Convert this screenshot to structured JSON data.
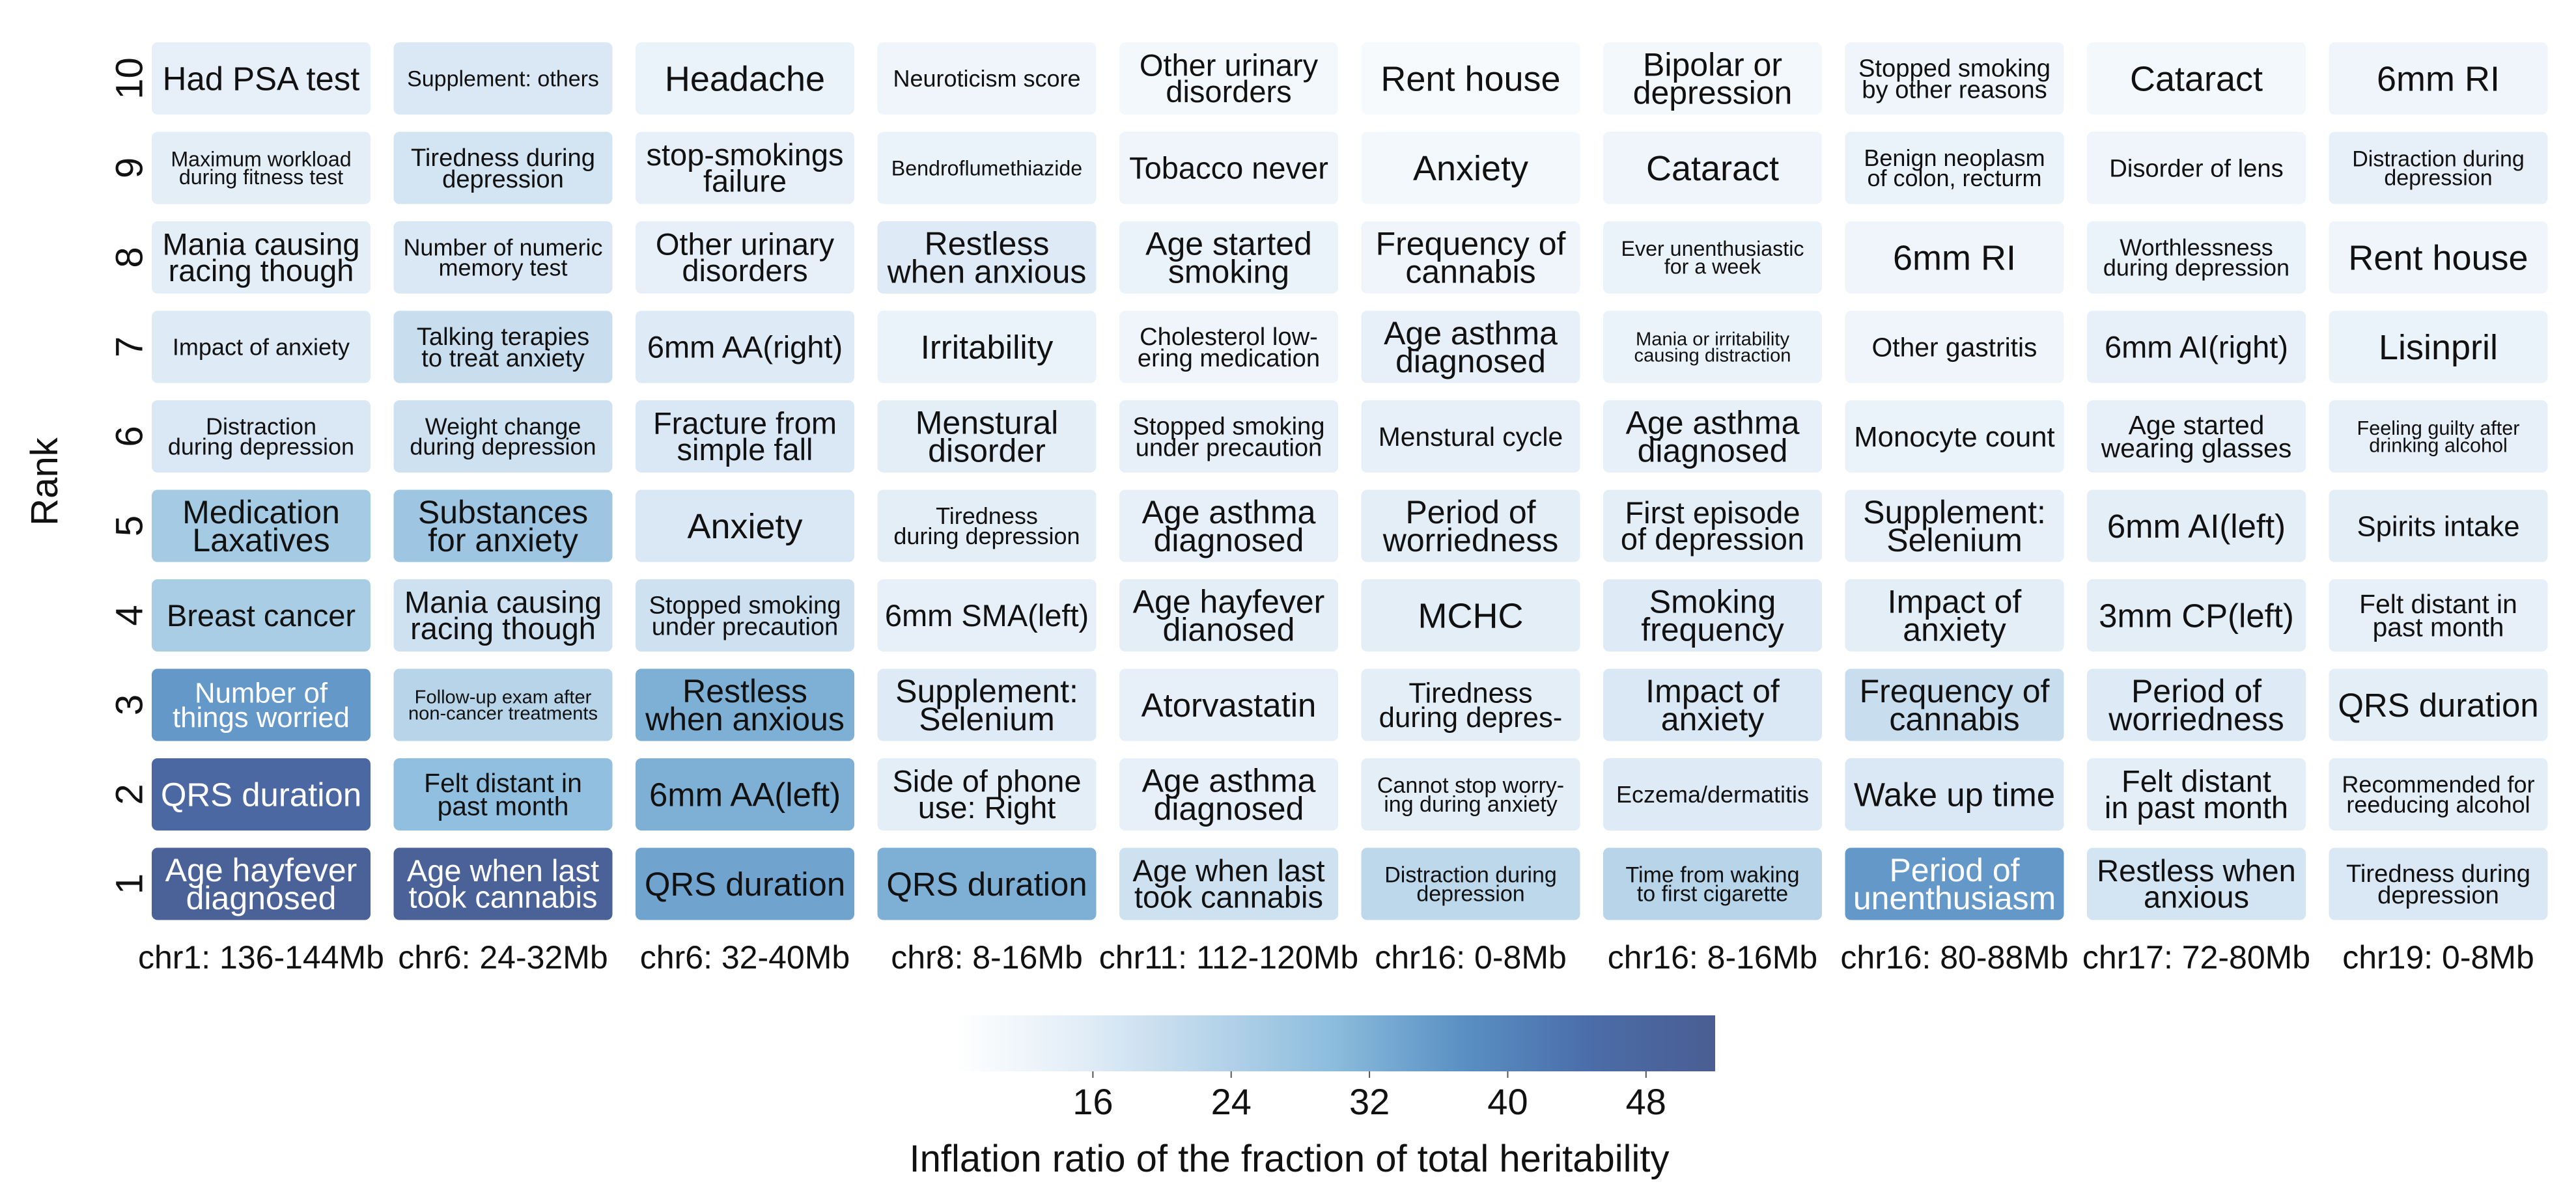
{
  "chart_data": {
    "type": "heatmap",
    "ylabel": "Rank",
    "columns": [
      "chr1: 136-144Mb",
      "chr6: 24-32Mb",
      "chr6: 32-40Mb",
      "chr8: 8-16Mb",
      "chr11: 112-120Mb",
      "chr16: 0-8Mb",
      "chr16: 8-16Mb",
      "chr16: 80-88Mb",
      "chr17: 72-80Mb",
      "chr19: 0-8Mb"
    ],
    "rows": [
      "10",
      "9",
      "8",
      "7",
      "6",
      "5",
      "4",
      "3",
      "2",
      "1"
    ],
    "cells": [
      [
        [
          "Had PSA test"
        ],
        [
          "Supplement: others"
        ],
        [
          "Headache"
        ],
        [
          "Neuroticism score"
        ],
        [
          "Other urinary",
          "disorders"
        ],
        [
          "Rent house"
        ],
        [
          "Bipolar or",
          "depression"
        ],
        [
          "Stopped smoking",
          "by other reasons"
        ],
        [
          "Cataract"
        ],
        [
          "6mm RI"
        ]
      ],
      [
        [
          "Maximum workload",
          "during fitness test"
        ],
        [
          "Tiredness during",
          "depression"
        ],
        [
          "stop-smokings",
          "failure"
        ],
        [
          "Bendroflumethiazide"
        ],
        [
          "Tobacco never"
        ],
        [
          "Anxiety"
        ],
        [
          "Cataract"
        ],
        [
          "Benign neoplasm",
          "of colon, recturm"
        ],
        [
          "Disorder of lens"
        ],
        [
          "Distraction during",
          "depression"
        ]
      ],
      [
        [
          "Mania causing",
          "racing though"
        ],
        [
          "Number of numeric",
          "memory test"
        ],
        [
          "Other urinary",
          "disorders"
        ],
        [
          "Restless",
          "when anxious"
        ],
        [
          "Age started",
          "smoking"
        ],
        [
          "Frequency of",
          "cannabis"
        ],
        [
          "Ever unenthusiastic",
          "for a week"
        ],
        [
          "6mm RI"
        ],
        [
          "Worthlessness",
          "during depression"
        ],
        [
          "Rent house"
        ]
      ],
      [
        [
          "Impact of anxiety"
        ],
        [
          "Talking terapies",
          "to treat anxiety"
        ],
        [
          "6mm AA(right)"
        ],
        [
          "Irritability"
        ],
        [
          "Cholesterol low-",
          "ering medication"
        ],
        [
          "Age asthma",
          "diagnosed"
        ],
        [
          "Mania or irritability",
          "causing distraction"
        ],
        [
          "Other gastritis"
        ],
        [
          "6mm AI(right)"
        ],
        [
          "Lisinpril"
        ]
      ],
      [
        [
          "Distraction",
          "during depression"
        ],
        [
          "Weight change",
          "during depression"
        ],
        [
          "Fracture from",
          "simple fall"
        ],
        [
          "Menstural",
          "disorder"
        ],
        [
          "Stopped smoking",
          "under precaution"
        ],
        [
          "Menstural cycle"
        ],
        [
          "Age asthma",
          "diagnosed"
        ],
        [
          "Monocyte count"
        ],
        [
          "Age started",
          "wearing glasses"
        ],
        [
          "Feeling guilty after",
          "drinking alcohol"
        ]
      ],
      [
        [
          "Medication",
          "Laxatives"
        ],
        [
          "Substances",
          "for anxiety"
        ],
        [
          "Anxiety"
        ],
        [
          "Tiredness",
          "during depression"
        ],
        [
          "Age asthma",
          "diagnosed"
        ],
        [
          "Period of",
          "worriedness"
        ],
        [
          "First episode",
          "of depression"
        ],
        [
          "Supplement:",
          "Selenium"
        ],
        [
          "6mm AI(left)"
        ],
        [
          "Spirits intake"
        ]
      ],
      [
        [
          "Breast cancer"
        ],
        [
          "Mania causing",
          "racing though"
        ],
        [
          "Stopped smoking",
          "under precaution"
        ],
        [
          "6mm SMA(left)"
        ],
        [
          "Age hayfever",
          "dianosed"
        ],
        [
          "MCHC"
        ],
        [
          "Smoking",
          "frequency"
        ],
        [
          "Impact of",
          "anxiety"
        ],
        [
          "3mm CP(left)"
        ],
        [
          "Felt distant in",
          "past month"
        ]
      ],
      [
        [
          "Number of",
          "things worried"
        ],
        [
          "Follow-up exam after",
          "non-cancer treatments"
        ],
        [
          "Restless",
          "when anxious"
        ],
        [
          "Supplement:",
          "Selenium"
        ],
        [
          "Atorvastatin"
        ],
        [
          "Tiredness",
          "during depres-"
        ],
        [
          "Impact of",
          "anxiety"
        ],
        [
          "Frequency of",
          "cannabis"
        ],
        [
          "Period of",
          "worriedness"
        ],
        [
          "QRS duration"
        ]
      ],
      [
        [
          "QRS duration"
        ],
        [
          "Felt distant in",
          "past month"
        ],
        [
          "6mm AA(left)"
        ],
        [
          "Side of phone",
          "use: Right"
        ],
        [
          "Age asthma",
          "diagnosed"
        ],
        [
          "Cannot stop worry-",
          "ing during anxiety"
        ],
        [
          "Eczema/dermatitis"
        ],
        [
          "Wake up time"
        ],
        [
          "Felt distant",
          "in past month"
        ],
        [
          "Recommended for",
          "reeducing alcohol"
        ]
      ],
      [
        [
          "Age hayfever",
          "diagnosed"
        ],
        [
          "Age when last",
          "took cannabis"
        ],
        [
          "QRS duration"
        ],
        [
          "QRS duration"
        ],
        [
          "Age when last",
          "took cannabis"
        ],
        [
          "Distraction during",
          "depression"
        ],
        [
          "Time from waking",
          "to first cigarette"
        ],
        [
          "Period of",
          "unenthusiasm"
        ],
        [
          "Restless when",
          "anxious"
        ],
        [
          "Tiredness during",
          "depression"
        ]
      ]
    ],
    "values": [
      [
        14,
        17,
        13,
        12,
        11,
        10,
        11,
        12,
        11,
        12
      ],
      [
        15,
        18,
        14,
        13,
        12,
        11,
        12,
        13,
        12,
        14
      ],
      [
        15,
        17,
        14,
        16,
        13,
        12,
        13,
        12,
        13,
        12
      ],
      [
        16,
        20,
        16,
        13,
        12,
        14,
        13,
        12,
        14,
        13
      ],
      [
        17,
        19,
        17,
        15,
        14,
        14,
        14,
        13,
        14,
        14
      ],
      [
        26,
        27,
        17,
        15,
        14,
        15,
        15,
        14,
        15,
        15
      ],
      [
        25,
        19,
        19,
        14,
        15,
        15,
        16,
        15,
        15,
        14
      ],
      [
        36,
        23,
        32,
        16,
        14,
        15,
        17,
        20,
        16,
        15
      ],
      [
        47,
        29,
        32,
        15,
        14,
        15,
        16,
        17,
        15,
        15
      ],
      [
        50,
        50,
        34,
        32,
        19,
        22,
        23,
        36,
        18,
        17
      ]
    ],
    "colorbar": {
      "label": "Inflation ratio of the fraction of total heritability",
      "ticks": [
        16,
        24,
        32,
        40,
        48
      ],
      "range": [
        8,
        52
      ],
      "colors": [
        "#ffffff",
        "#e2edf7",
        "#b9d5ea",
        "#8bbcdd",
        "#5a90c4",
        "#4b6da9",
        "#4a5e92"
      ]
    },
    "text_color_dark": "#111111",
    "text_color_light": "#ffffff"
  }
}
